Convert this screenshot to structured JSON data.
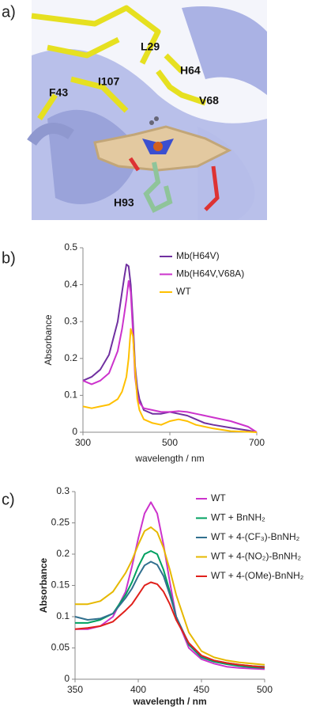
{
  "panel_labels": [
    "a)",
    "b)",
    "c)"
  ],
  "structure_labels": [
    "L29",
    "H64",
    "V68",
    "F43",
    "I107",
    "H93"
  ],
  "chart_data": [
    {
      "type": "line",
      "xlabel": "wavelength / nm",
      "ylabel": "Absorbance",
      "xlim": [
        300,
        700
      ],
      "xticks": [
        300,
        500,
        700
      ],
      "ylim": [
        0,
        0.5
      ],
      "yticks": [
        0,
        0.1,
        0.2,
        0.3,
        0.4,
        0.5
      ],
      "grid": false,
      "legend": "top-right",
      "x": [
        300,
        320,
        340,
        360,
        380,
        390,
        395,
        400,
        405,
        410,
        415,
        420,
        425,
        430,
        440,
        460,
        480,
        500,
        520,
        540,
        560,
        580,
        600,
        640,
        680,
        700
      ],
      "series": [
        {
          "name": "Mb(H64V)",
          "color": "#7030a0",
          "values": [
            0.14,
            0.15,
            0.17,
            0.21,
            0.3,
            0.38,
            0.42,
            0.455,
            0.45,
            0.4,
            0.3,
            0.18,
            0.12,
            0.09,
            0.06,
            0.05,
            0.05,
            0.055,
            0.05,
            0.045,
            0.035,
            0.025,
            0.02,
            0.012,
            0.005,
            0
          ]
        },
        {
          "name": "Mb(H64V,V68A)",
          "color": "#cc33cc",
          "values": [
            0.14,
            0.13,
            0.14,
            0.16,
            0.22,
            0.28,
            0.32,
            0.36,
            0.41,
            0.38,
            0.27,
            0.15,
            0.1,
            0.08,
            0.065,
            0.06,
            0.055,
            0.055,
            0.057,
            0.055,
            0.05,
            0.045,
            0.04,
            0.03,
            0.015,
            0
          ]
        },
        {
          "name": "WT",
          "color": "#ffc000",
          "values": [
            0.07,
            0.065,
            0.07,
            0.075,
            0.09,
            0.11,
            0.13,
            0.15,
            0.2,
            0.28,
            0.26,
            0.17,
            0.09,
            0.06,
            0.035,
            0.025,
            0.02,
            0.03,
            0.035,
            0.03,
            0.02,
            0.015,
            0.01,
            0.003,
            0.001,
            0
          ]
        }
      ]
    },
    {
      "type": "line",
      "xlabel": "wavelength / nm",
      "ylabel": "Absorbance",
      "xlim": [
        350,
        500
      ],
      "xticks": [
        350,
        400,
        450,
        500
      ],
      "ylim": [
        0,
        0.3
      ],
      "yticks": [
        0,
        0.05,
        0.1,
        0.15,
        0.2,
        0.25,
        0.3
      ],
      "grid": false,
      "legend": "top-right",
      "x": [
        350,
        360,
        370,
        380,
        390,
        395,
        400,
        405,
        410,
        415,
        420,
        425,
        430,
        440,
        450,
        460,
        470,
        480,
        490,
        500
      ],
      "series": [
        {
          "name": "WT",
          "color": "#cc33cc",
          "values": [
            0.08,
            0.08,
            0.085,
            0.1,
            0.14,
            0.18,
            0.225,
            0.265,
            0.283,
            0.265,
            0.215,
            0.155,
            0.1,
            0.05,
            0.032,
            0.025,
            0.02,
            0.018,
            0.017,
            0.016
          ]
        },
        {
          "name": "WT + BnNH₂",
          "color": "#00a060",
          "values": [
            0.09,
            0.09,
            0.095,
            0.105,
            0.135,
            0.155,
            0.18,
            0.2,
            0.205,
            0.2,
            0.175,
            0.14,
            0.1,
            0.055,
            0.035,
            0.028,
            0.024,
            0.021,
            0.019,
            0.018
          ]
        },
        {
          "name": "WT + 4-(CF₃)-BnNH₂",
          "color": "#31708f",
          "values": [
            0.1,
            0.095,
            0.097,
            0.105,
            0.13,
            0.145,
            0.165,
            0.182,
            0.188,
            0.183,
            0.165,
            0.135,
            0.1,
            0.057,
            0.037,
            0.03,
            0.026,
            0.023,
            0.021,
            0.02
          ]
        },
        {
          "name": "WT + 4-(NO₂)-BnNH₂",
          "color": "#e6b800",
          "values": [
            0.12,
            0.12,
            0.125,
            0.14,
            0.17,
            0.19,
            0.215,
            0.237,
            0.243,
            0.235,
            0.21,
            0.175,
            0.135,
            0.075,
            0.045,
            0.035,
            0.03,
            0.027,
            0.025,
            0.023
          ]
        },
        {
          "name": "WT + 4-(OMe)-BnNH₂",
          "color": "#e0201b",
          "values": [
            0.08,
            0.082,
            0.085,
            0.092,
            0.11,
            0.12,
            0.135,
            0.15,
            0.155,
            0.152,
            0.14,
            0.12,
            0.095,
            0.058,
            0.038,
            0.03,
            0.026,
            0.023,
            0.021,
            0.019
          ]
        }
      ]
    }
  ]
}
